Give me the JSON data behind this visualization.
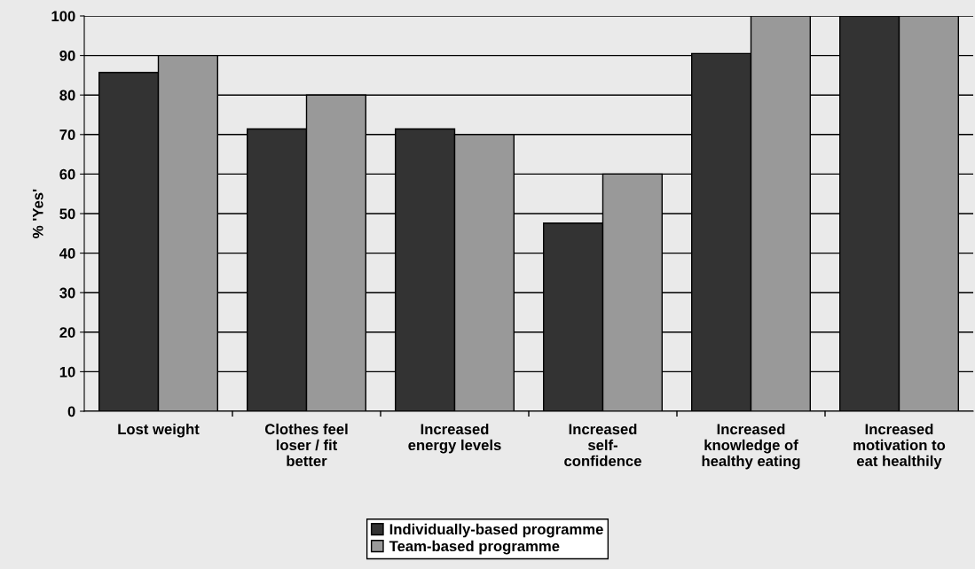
{
  "chart_data": {
    "type": "bar",
    "ylabel": "% 'Yes'",
    "categories": [
      "Lost weight",
      "Clothes feel\nloser / fit\nbetter",
      "Increased\nenergy levels",
      "Increased\nself-\nconfidence",
      "Increased\nknowledge of\nhealthy eating",
      "Increased\nmotivation to\neat healthily"
    ],
    "series": [
      {
        "name": "Individually-based programme",
        "color": "#333333",
        "values": [
          85.7,
          71.4,
          71.4,
          47.6,
          90.5,
          100
        ]
      },
      {
        "name": "Team-based programme",
        "color": "#999999",
        "values": [
          90,
          80,
          70,
          60,
          100,
          100
        ]
      }
    ],
    "ylim": [
      0,
      100
    ],
    "yticks": [
      0,
      10,
      20,
      30,
      40,
      50,
      60,
      70,
      80,
      90,
      100
    ],
    "grid": "y",
    "legend": "bottom"
  }
}
